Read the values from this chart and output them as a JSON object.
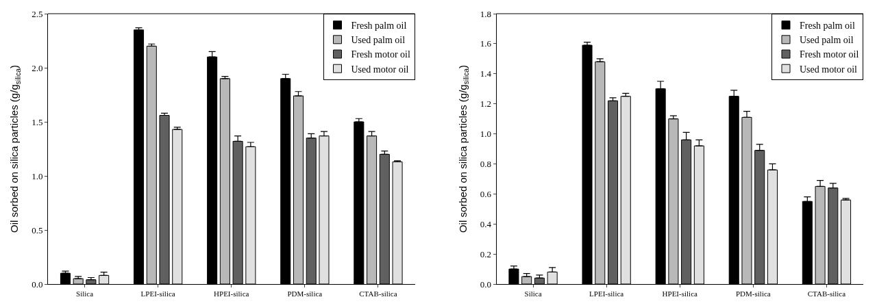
{
  "chart_data": [
    {
      "type": "bar",
      "ylabel": "Oil sorbed on silica particles (g/g$_{silica}$)",
      "categories": [
        "Silica",
        "LPEI-silica",
        "HPEI-silica",
        "PDM-silica",
        "CTAB-silica"
      ],
      "ylim": [
        0,
        2.5
      ],
      "yticks": [
        {
          "value": 0,
          "label": "0.0"
        },
        0.5,
        {
          "value": 1,
          "label": "1.0"
        },
        1.5,
        {
          "value": 2,
          "label": "2.0"
        },
        2.5
      ],
      "grid": false,
      "legend": "top right",
      "series": [
        {
          "name": "Fresh palm oil",
          "color": "#000000",
          "values": [
            0.1,
            2.35,
            2.1,
            1.9,
            1.5
          ],
          "errors": [
            [
              0.1,
              0.12
            ],
            [
              2.35,
              2.37
            ],
            [
              2.1,
              2.15
            ],
            [
              1.9,
              1.94
            ],
            [
              1.5,
              1.53
            ]
          ]
        },
        {
          "name": "Used palm oil",
          "color": "#b8b8b8",
          "values": [
            0.05,
            2.2,
            1.9,
            1.74,
            1.37
          ],
          "errors": [
            [
              0.05,
              0.07
            ],
            [
              2.2,
              2.22
            ],
            [
              1.9,
              1.92
            ],
            [
              1.74,
              1.78
            ],
            [
              1.37,
              1.41
            ]
          ]
        },
        {
          "name": "Fresh motor oil",
          "color": "#606060",
          "values": [
            0.04,
            1.56,
            1.32,
            1.35,
            1.2
          ],
          "errors": [
            [
              0.04,
              0.06
            ],
            [
              1.56,
              1.58
            ],
            [
              1.32,
              1.37
            ],
            [
              1.35,
              1.39
            ],
            [
              1.2,
              1.23
            ]
          ]
        },
        {
          "name": "Used motor oil",
          "color": "#e0e0e0",
          "values": [
            0.08,
            1.43,
            1.27,
            1.37,
            1.13
          ],
          "errors": [
            [
              0.08,
              0.11
            ],
            [
              1.43,
              1.45
            ],
            [
              1.27,
              1.31
            ],
            [
              1.37,
              1.41
            ],
            [
              1.13,
              1.14
            ]
          ]
        }
      ]
    },
    {
      "type": "bar",
      "ylabel": "Oil sorbed on silica particles (g/g$_{silica}$)",
      "categories": [
        "Silica",
        "LPEI-silica",
        "HPEI-silica",
        "PDM-silica",
        "CTAB-silica"
      ],
      "ylim": [
        0,
        1.8
      ],
      "yticks": [
        {
          "value": 0,
          "label": "0.0"
        },
        0.2,
        0.4,
        0.6,
        0.8,
        {
          "value": 1,
          "label": "1.0"
        },
        1.2,
        1.4,
        1.6,
        1.8
      ],
      "grid": false,
      "legend": "top right",
      "series": [
        {
          "name": "Fresh palm oil",
          "color": "#000000",
          "values": [
            0.1,
            1.59,
            1.3,
            1.25,
            0.55
          ],
          "errors": [
            [
              0.1,
              0.12
            ],
            [
              1.59,
              1.61
            ],
            [
              1.3,
              1.35
            ],
            [
              1.25,
              1.29
            ],
            [
              0.55,
              0.58
            ]
          ]
        },
        {
          "name": "Used palm oil",
          "color": "#b8b8b8",
          "values": [
            0.05,
            1.48,
            1.1,
            1.11,
            0.65
          ],
          "errors": [
            [
              0.05,
              0.07
            ],
            [
              1.48,
              1.5
            ],
            [
              1.1,
              1.12
            ],
            [
              1.11,
              1.15
            ],
            [
              0.65,
              0.69
            ]
          ]
        },
        {
          "name": "Fresh motor oil",
          "color": "#606060",
          "values": [
            0.04,
            1.22,
            0.96,
            0.89,
            0.64
          ],
          "errors": [
            [
              0.04,
              0.06
            ],
            [
              1.22,
              1.24
            ],
            [
              0.96,
              1.01
            ],
            [
              0.89,
              0.93
            ],
            [
              0.64,
              0.67
            ]
          ]
        },
        {
          "name": "Used motor oil",
          "color": "#e0e0e0",
          "values": [
            0.08,
            1.25,
            0.92,
            0.76,
            0.56
          ],
          "errors": [
            [
              0.08,
              0.11
            ],
            [
              1.25,
              1.27
            ],
            [
              0.92,
              0.96
            ],
            [
              0.76,
              0.8
            ],
            [
              0.56,
              0.57
            ]
          ]
        }
      ]
    }
  ]
}
